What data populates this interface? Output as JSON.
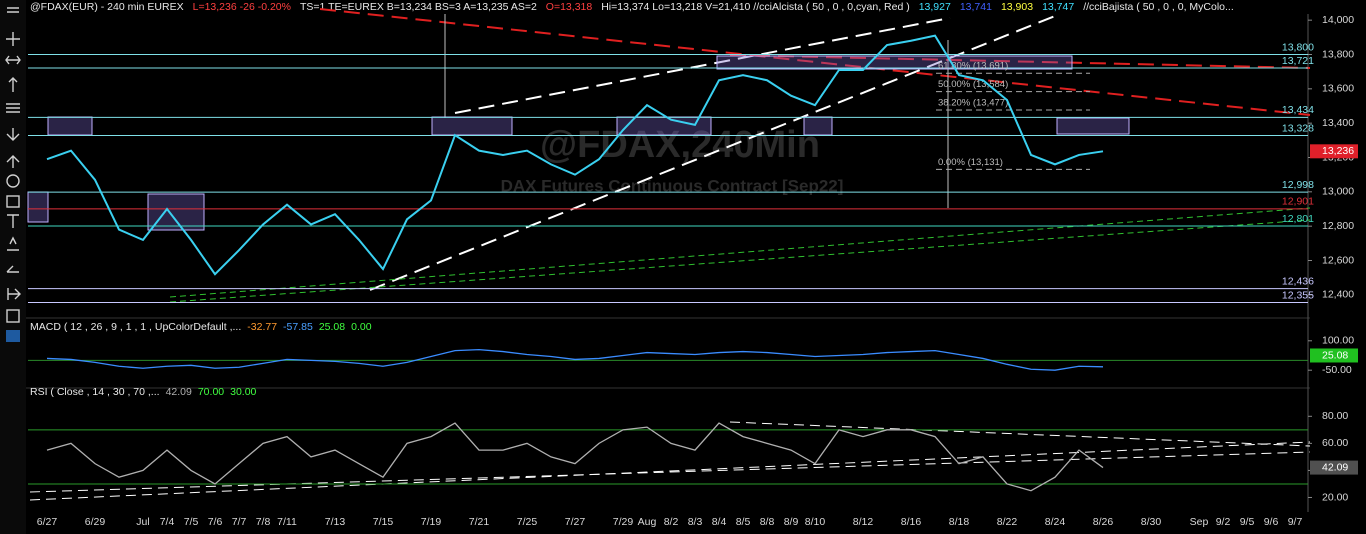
{
  "header": {
    "segments": [
      {
        "text": "@FDAX(EUR) - 240 min  EUREX",
        "color": "#e8e8e8"
      },
      {
        "text": "L=13,236  -26  -0.20%",
        "color": "#ff4040"
      },
      {
        "text": "TS=1    TE=EUREX   B=13,234   BS=3    A=13,235   AS=2",
        "color": "#e8e8e8"
      },
      {
        "text": "O=13,318",
        "color": "#ff4040"
      },
      {
        "text": "Hi=13,374   Lo=13,218   V=21,410   //cciAlcista ( 50 , 0 , 0,cyan, Red )",
        "color": "#e8e8e8"
      },
      {
        "text": "13,927",
        "color": "#40e0ff"
      },
      {
        "text": "13,741",
        "color": "#4060ff"
      },
      {
        "text": "13,903",
        "color": "#ffff40"
      },
      {
        "text": "13,747",
        "color": "#40e0ff"
      },
      {
        "text": "//cciBajista ( 50 , 0 , 0, MyColo...",
        "color": "#e8e8e8"
      }
    ],
    "watermark": "@FDAX,240Min",
    "watermark_subtitle": "DAX  Futures Continuous Contract [Sep22]"
  },
  "chart_data": [
    {
      "type": "line",
      "color": "#3ad0f0",
      "categories": [
        "6/27",
        null,
        "6/29",
        null,
        "Jul",
        "7/4",
        "7/5",
        "7/6",
        "7/7",
        "7/8",
        "7/11",
        null,
        "7/13",
        null,
        "7/15",
        null,
        "7/19",
        null,
        "7/21",
        null,
        "7/25",
        null,
        "7/27",
        null,
        "7/29",
        "Aug",
        "8/2",
        "8/3",
        "8/4",
        "8/5",
        "8/8",
        "8/9",
        "8/10",
        null,
        "8/12",
        null,
        "8/16",
        null,
        "8/18",
        null,
        "8/22",
        null,
        "8/24",
        null,
        "8/26",
        null,
        "8/30",
        null,
        "Sep",
        "9/2",
        "9/5",
        "9/6",
        "9/7"
      ],
      "values": [
        13190,
        13240,
        13070,
        12780,
        12720,
        12900,
        12720,
        12520,
        12660,
        12810,
        12925,
        12810,
        12870,
        12720,
        12550,
        12840,
        12950,
        13330,
        13240,
        13215,
        13240,
        13160,
        13100,
        13190,
        13360,
        13505,
        13420,
        13390,
        13650,
        13680,
        13650,
        13560,
        13505,
        13710,
        13710,
        13855,
        13880,
        13910,
        13680,
        13650,
        13535,
        13215,
        13160,
        13215,
        13236,
        null,
        null,
        null,
        null,
        null,
        null,
        null,
        null
      ],
      "ylim": [
        12300,
        14100
      ],
      "yticks": [
        {
          "value": 12400,
          "label": "12,400"
        },
        {
          "value": 12600,
          "label": "12,600"
        },
        {
          "value": 12800,
          "label": "12,800"
        },
        {
          "value": 13000,
          "label": "13,000"
        },
        {
          "value": 13200,
          "label": "13,200"
        },
        {
          "value": 13400,
          "label": "13,400"
        },
        {
          "value": 13600,
          "label": "13,600"
        },
        {
          "value": 13800,
          "label": "13,800"
        },
        {
          "value": 14000,
          "label": "14,000"
        }
      ],
      "reference_lines": [
        {
          "value": 13800,
          "label": "13,800",
          "color": "#7fe0e8"
        },
        {
          "value": 13721,
          "label": "13,721",
          "color": "#7fe0e8"
        },
        {
          "value": 13434,
          "label": "13,434",
          "color": "#7fe0e8"
        },
        {
          "value": 13328,
          "label": "13,328",
          "color": "#7fe0e8"
        },
        {
          "value": 12998,
          "label": "12,998",
          "color": "#7fe0e8"
        },
        {
          "value": 12901,
          "label": "12,901",
          "color": "#e0303a"
        },
        {
          "value": 12801,
          "label": "12,801",
          "color": "#40d8c0"
        },
        {
          "value": 12436,
          "label": "12,436",
          "color": "#c8c8ff"
        },
        {
          "value": 12355,
          "label": "12,355",
          "color": "#c8c8ff"
        }
      ],
      "annotations": [
        {
          "label": "61.80% (13,691)",
          "price": 13691
        },
        {
          "label": "50.00% (13,584)",
          "price": 13584
        },
        {
          "label": "38.20% (13,477)",
          "price": 13477
        },
        {
          "label": "0.00% (13,131)",
          "price": 13131
        }
      ],
      "last_label": {
        "value": 13236,
        "label": "13,236",
        "color": "#e0202a"
      }
    },
    {
      "type": "line",
      "color": "#3a8cff",
      "indicator_label": "MACD ( 12 , 26 , 9 , 1 , 1 , UpColorDefault ,...",
      "readouts": [
        {
          "text": "-32.77",
          "color": "#ff9a30"
        },
        {
          "text": "-57.85",
          "color": "#4aa0ff"
        },
        {
          "text": "25.08",
          "color": "#40ff40"
        },
        {
          "text": "0.00",
          "color": "#40ff40"
        }
      ],
      "values": [
        10,
        5,
        -10,
        -30,
        -40,
        -30,
        -25,
        -40,
        -35,
        -15,
        5,
        0,
        -5,
        -15,
        -30,
        -10,
        20,
        50,
        55,
        45,
        30,
        20,
        5,
        10,
        25,
        40,
        35,
        30,
        40,
        45,
        40,
        30,
        20,
        25,
        30,
        40,
        45,
        50,
        30,
        10,
        -20,
        -45,
        -50,
        -30,
        -32.77,
        null,
        null,
        null,
        null,
        null,
        null,
        null,
        null
      ],
      "ylim": [
        -100,
        150
      ],
      "yticks": [
        {
          "value": -50,
          "label": "-50.00"
        },
        {
          "value": 100,
          "label": "100.00"
        }
      ],
      "levels": [
        0
      ],
      "level_color": "#2a8a2a",
      "last_label": {
        "value": 25.08,
        "label": "25.08",
        "color": "#20c020"
      }
    },
    {
      "type": "line",
      "color": "#b0b0b0",
      "indicator_label": "RSI ( Close , 14 , 30 , 70 ,...",
      "readouts": [
        {
          "text": "42.09",
          "color": "#b0b0b0"
        },
        {
          "text": "70.00",
          "color": "#40ff40"
        },
        {
          "text": "30.00",
          "color": "#40ff40"
        }
      ],
      "values": [
        55,
        60,
        45,
        35,
        40,
        55,
        40,
        30,
        45,
        60,
        65,
        50,
        55,
        45,
        35,
        60,
        65,
        75,
        55,
        55,
        60,
        50,
        45,
        60,
        70,
        72,
        60,
        55,
        75,
        65,
        60,
        55,
        45,
        70,
        65,
        70,
        70,
        65,
        45,
        50,
        30,
        25,
        35,
        55,
        42.09,
        null,
        null,
        null,
        null,
        null,
        null,
        null,
        null
      ],
      "ylim": [
        10,
        95
      ],
      "yticks": [
        {
          "value": 20,
          "label": "20.00"
        },
        {
          "value": 40,
          "label": "40.00"
        },
        {
          "value": 60,
          "label": "60.00"
        },
        {
          "value": 80,
          "label": "80.00"
        }
      ],
      "levels": [
        70,
        30
      ],
      "level_color": "#2a9a2a",
      "last_label": {
        "value": 42.09,
        "label": "42.09",
        "color": "#505050"
      }
    }
  ]
}
